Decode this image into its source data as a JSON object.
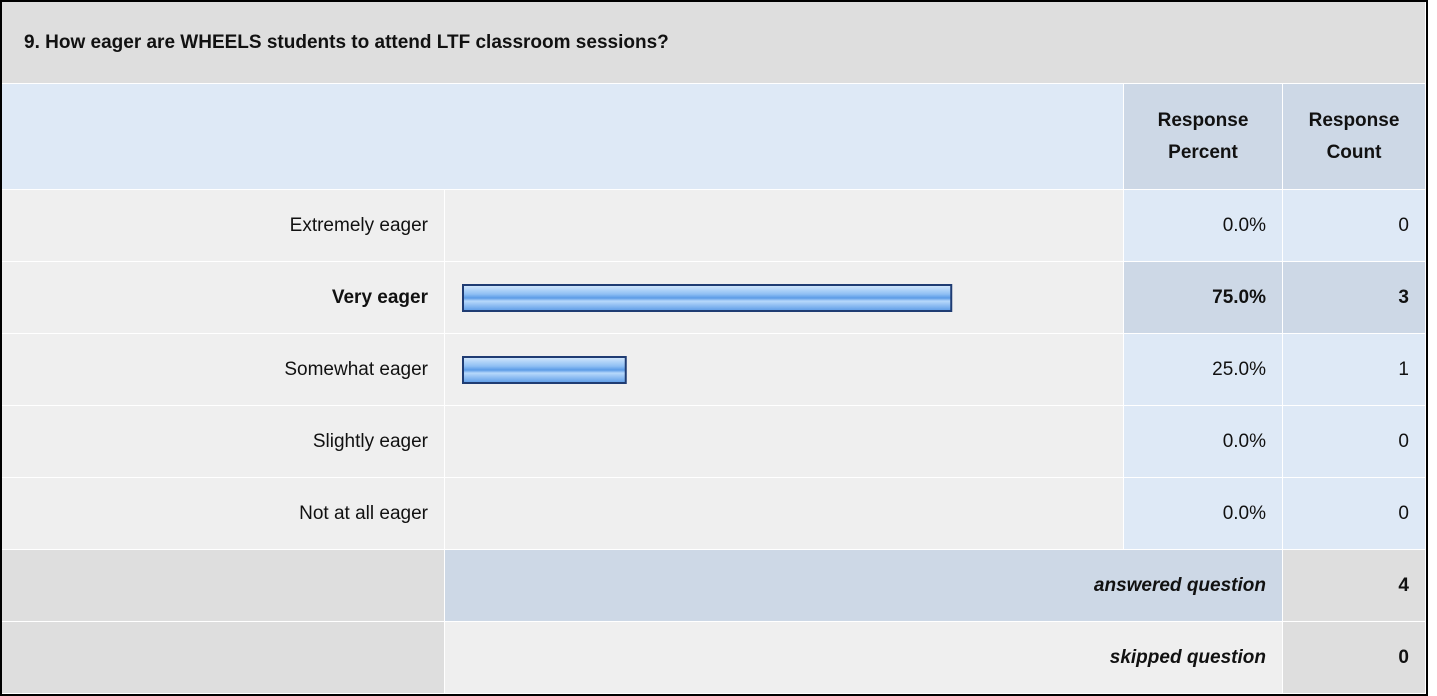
{
  "chart_data": {
    "type": "bar",
    "title": "9. How eager are WHEELS students to attend LTF classroom sessions?",
    "columns": [
      "Response Percent",
      "Response Count"
    ],
    "categories": [
      "Extremely eager",
      "Very eager",
      "Somewhat eager",
      "Slightly eager",
      "Not at all eager"
    ],
    "values": [
      0,
      75,
      25,
      0,
      0
    ],
    "value_labels": [
      "0.0%",
      "75.0%",
      "25.0%",
      "0.0%",
      "0.0%"
    ],
    "counts": [
      0,
      3,
      1,
      0,
      0
    ],
    "answered_label": "answered question",
    "answered": 4,
    "skipped_label": "skipped question",
    "skipped": 0,
    "color": "#5b9be6",
    "border_color": "#1f3c73"
  }
}
